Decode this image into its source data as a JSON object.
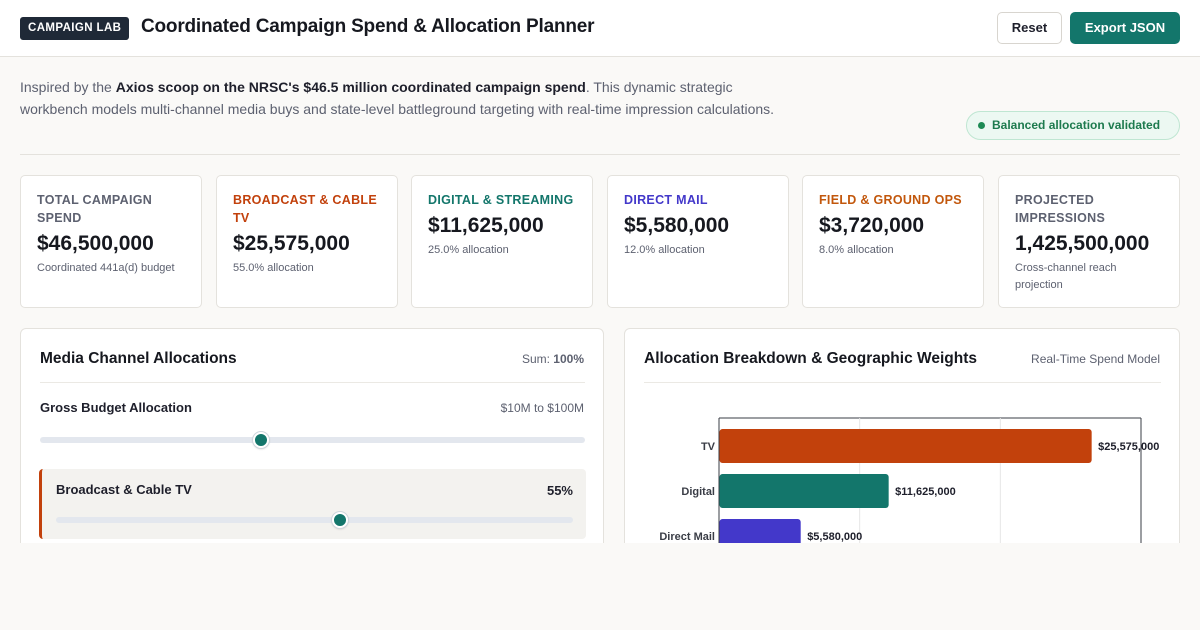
{
  "header": {
    "badge": "CAMPAIGN LAB",
    "title": "Coordinated Campaign Spend & Allocation Planner",
    "reset_label": "Reset",
    "export_label": "Export JSON"
  },
  "intro": {
    "prefix": "Inspired by the ",
    "highlight": "Axios scoop on the NRSC's $46.5 million coordinated campaign spend",
    "suffix": ". This dynamic strategic workbench models multi-channel media buys and state-level battleground targeting with real-time impression calculations."
  },
  "status": {
    "label": "Balanced allocation validated",
    "color": "#1d7a4e"
  },
  "kpis": [
    {
      "label": "Total Campaign Spend",
      "value": "$46,500,000",
      "sub": "Coordinated 441a(d) budget",
      "color": "#5d6170"
    },
    {
      "label": "Broadcast & Cable TV",
      "value": "$25,575,000",
      "sub": "55.0% allocation",
      "color": "#c2410c"
    },
    {
      "label": "Digital & Streaming",
      "value": "$11,625,000",
      "sub": "25.0% allocation",
      "color": "#13766b"
    },
    {
      "label": "Direct Mail",
      "value": "$5,580,000",
      "sub": "12.0% allocation",
      "color": "#4338ca"
    },
    {
      "label": "Field & Ground Ops",
      "value": "$3,720,000",
      "sub": "8.0% allocation",
      "color": "#c2570c"
    },
    {
      "label": "Projected Impressions",
      "value": "1,425,500,000",
      "sub": "Cross-channel reach projection",
      "color": "#5d6170"
    }
  ],
  "allocations_panel": {
    "title": "Media Channel Allocations",
    "sum_label": "Sum:",
    "sum_value": "100%",
    "budget_label": "Gross Budget Allocation",
    "budget_range": "$10M to $100M",
    "budget_min": 10,
    "budget_max": 100,
    "budget_value": 46.5,
    "channel": {
      "name": "Broadcast & Cable TV",
      "percent_label": "55%",
      "percent": 55,
      "accent": "#c2410c"
    }
  },
  "breakdown_panel": {
    "title": "Allocation Breakdown & Geographic Weights",
    "meta": "Real-Time Spend Model"
  },
  "chart_data": {
    "type": "bar",
    "orientation": "horizontal",
    "categories": [
      "TV",
      "Digital",
      "Direct Mail"
    ],
    "values": [
      25575000,
      11625000,
      5580000
    ],
    "labels": [
      "$25,575,000",
      "$11,625,000",
      "$5,580,000"
    ],
    "colors": [
      "#c2410c",
      "#13766b",
      "#4338ca"
    ],
    "xlim": [
      0,
      29000000
    ],
    "grid": true
  }
}
